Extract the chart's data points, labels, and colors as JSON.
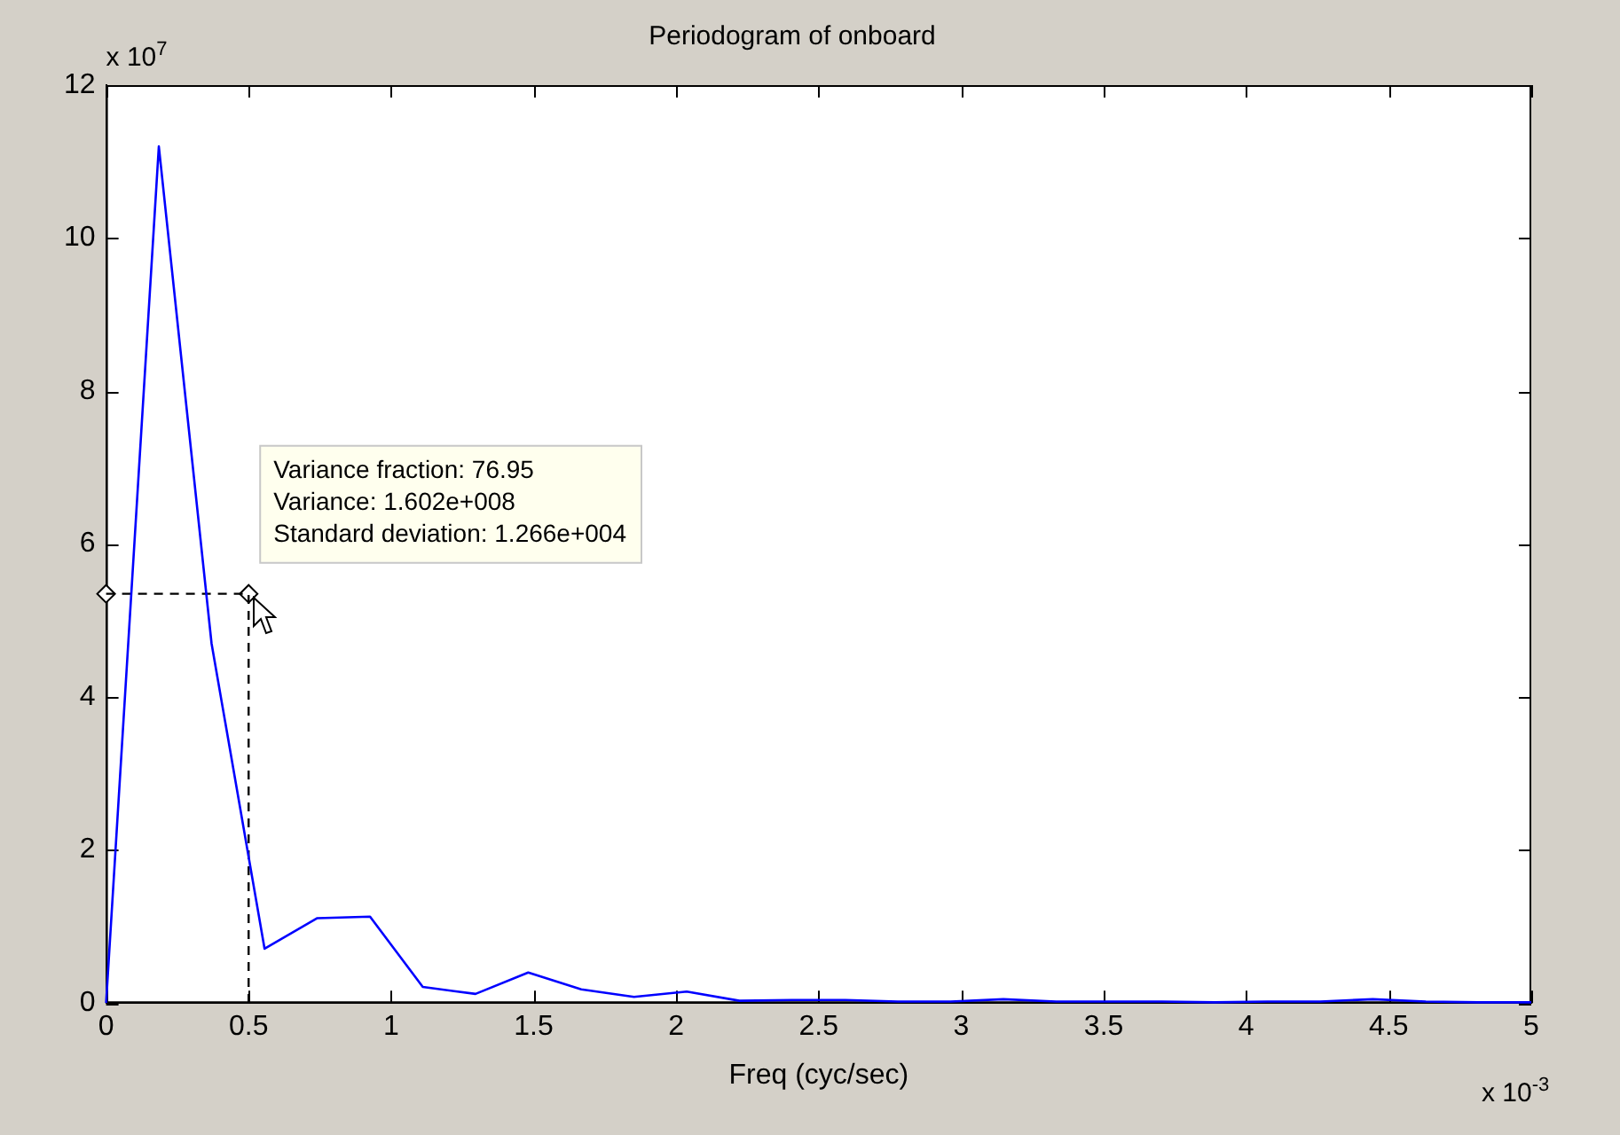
{
  "chart_data": {
    "type": "line",
    "title": "Periodogram of onboard",
    "xlabel": "Freq (cyc/sec)",
    "xlim": [
      0,
      5
    ],
    "xticks": [
      0,
      0.5,
      1,
      1.5,
      2,
      2.5,
      3,
      3.5,
      4,
      4.5,
      5
    ],
    "ylim": [
      0,
      12
    ],
    "yticks": [
      0,
      2,
      4,
      6,
      8,
      10,
      12
    ],
    "grid": false,
    "legend": false,
    "marker": "none",
    "line_style": "solid",
    "series": [
      {
        "color": "#0000ff",
        "x": [
          0,
          0.185,
          0.37,
          0.556,
          0.741,
          0.926,
          1.111,
          1.296,
          1.481,
          1.667,
          1.852,
          2.037,
          2.222,
          2.407,
          2.593,
          2.778,
          2.963,
          3.148,
          3.333,
          3.519,
          3.704,
          3.889,
          4.074,
          4.259,
          4.444,
          4.63,
          4.815,
          5
        ],
        "values": [
          0,
          11.2,
          4.7,
          0.71,
          1.11,
          1.13,
          0.21,
          0.12,
          0.4,
          0.18,
          0.08,
          0.15,
          0.03,
          0.04,
          0.04,
          0.02,
          0.02,
          0.05,
          0.02,
          0.02,
          0.02,
          0.01,
          0.02,
          0.02,
          0.05,
          0.02,
          0.01,
          0.01
        ]
      },
      {
        "type": "line",
        "color": "#000000",
        "line_style": "dashed",
        "marker": "none",
        "x": [
          0,
          0.5,
          0.5
        ],
        "values": [
          5.35,
          5.35,
          0
        ]
      },
      {
        "type": "scatter",
        "color": "#000000",
        "marker": "diamond",
        "x": [
          0,
          0.5
        ],
        "values": [
          5.35,
          5.35
        ]
      }
    ],
    "annotations": [
      "x 10$^{7}$",
      "x 10$^{-3}$",
      {
        "text": "Variance fraction: 76.95\nVariance: 1.602e+008\nStandard deviation: 1.266e+004",
        "x": 0.5,
        "y": 5.35
      }
    ]
  }
}
